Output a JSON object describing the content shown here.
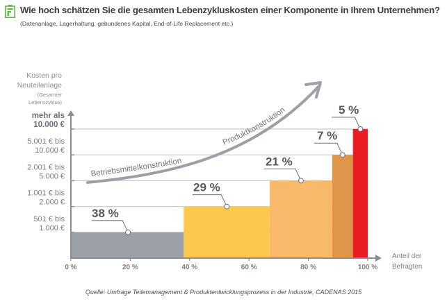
{
  "header": {
    "icon": "document-form-icon",
    "icon_color": "#5cb646",
    "title": "Wie hoch schätzen Sie die gesamten Lebenzykluskosten einer Komponente in Ihrem Unternehmen?",
    "subtitle": "(Datenanlage, Lagerhaltung, gebundenes Kapital, End-of-Life Replacement etc.)"
  },
  "source": "Quelle: Umfrage Teilemanagement & Produktentwicklungsprozess in der Industrie, CADENAS 2015",
  "chart_data": {
    "type": "bar",
    "subtype": "variable-width step bar (cumulative share on x)",
    "title": "Wie hoch schätzen Sie die gesamten Lebenzykluskosten einer Komponente in Ihrem Unternehmen?",
    "ylabel": [
      "Kosten pro",
      "Neuteilanlage"
    ],
    "ylabel_note": [
      "(Gesamter",
      "Lebenszyklus)"
    ],
    "xlabel": [
      "Anteil der",
      "Befragten"
    ],
    "xlim": [
      0,
      100
    ],
    "x_ticks": [
      "0 %",
      "20 %",
      "40 %",
      "60 %",
      "80 %",
      "100 %"
    ],
    "x_tick_values": [
      0,
      20,
      40,
      60,
      80,
      100
    ],
    "y_levels": [
      {
        "label": [
          "501 € bis",
          "1.000 €"
        ]
      },
      {
        "label": [
          "1.001 € bis",
          "2.000 €"
        ]
      },
      {
        "label": [
          "2.001 € bis",
          "5.000 €"
        ]
      },
      {
        "label": [
          "5.001 € bis",
          "10.000 €"
        ]
      },
      {
        "label": [
          "mehr als",
          "10.000 €"
        ]
      }
    ],
    "categories": [
      "501 € bis 1.000 €",
      "1.001 € bis 2.000 €",
      "2.001 € bis 5.000 €",
      "5.001 € bis 10.000 €",
      "mehr als 10.000 €"
    ],
    "values": [
      38,
      29,
      21,
      7,
      5
    ],
    "value_labels": [
      "38 %",
      "29 %",
      "21 %",
      "7 %",
      "5 %"
    ],
    "colors": [
      "#9aa0a6",
      "#fcc94e",
      "#f9b96b",
      "#df964b",
      "#ec1c24"
    ],
    "grid": true,
    "annotations": {
      "arrow_labels": [
        "Betriebsmittelkonstruktion",
        "Produktkonstruktion"
      ],
      "arrow_color": "#9aa0a6"
    },
    "legend": "none"
  }
}
